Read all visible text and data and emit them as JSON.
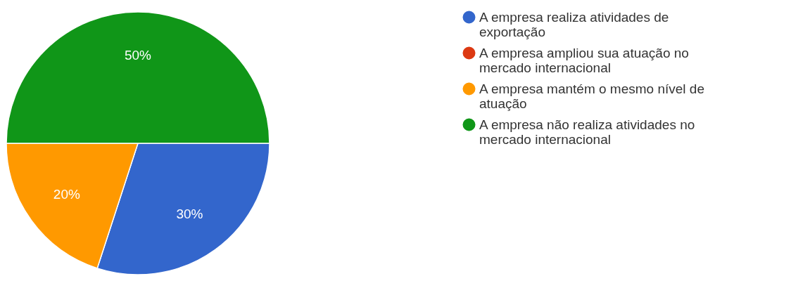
{
  "chart_data": {
    "type": "pie",
    "categories": [
      "A empresa realiza atividades de exportação",
      "A empresa ampliou sua atuação no mercado internacional",
      "A empresa mantém o mesmo nível de atuação",
      "A empresa não realiza atividades no mercado internacional"
    ],
    "values": [
      30,
      0,
      20,
      50
    ],
    "colors": [
      "#3366cc",
      "#dc3912",
      "#ff9900",
      "#109618"
    ],
    "value_labels": [
      "30%",
      null,
      "20%",
      "50%"
    ],
    "legend": "right"
  }
}
